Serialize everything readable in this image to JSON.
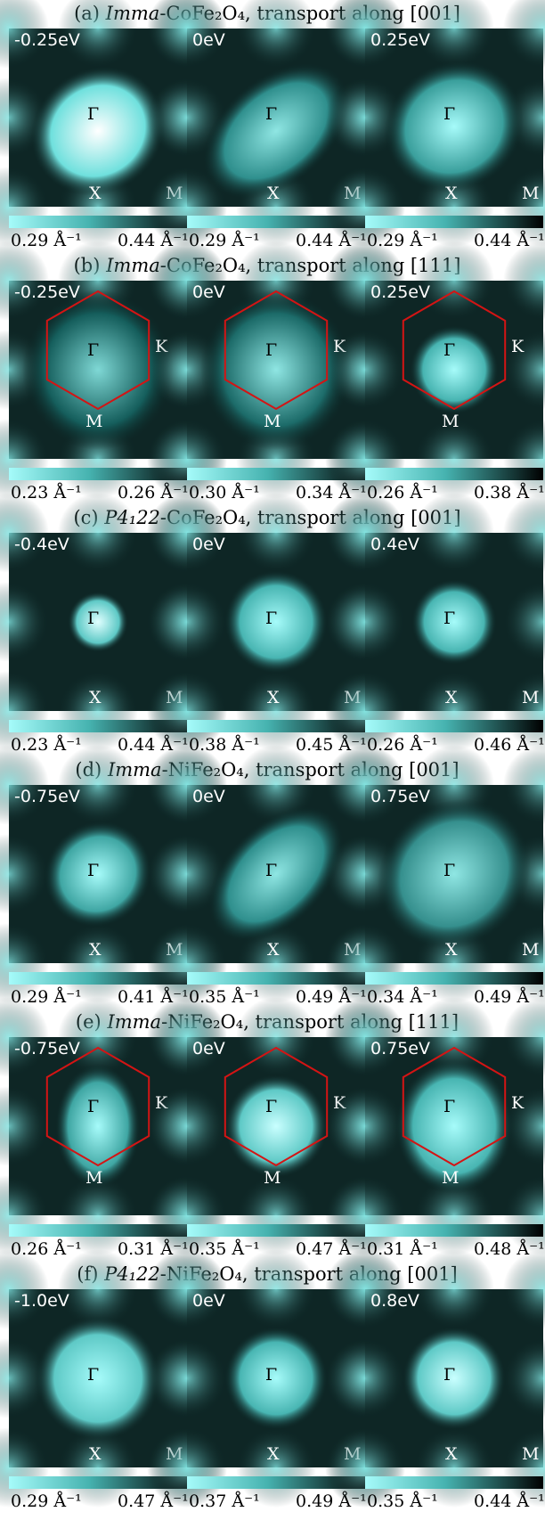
{
  "colors": {
    "scale_low": "#a6fbfa",
    "scale_mid": "#46b3b0",
    "scale_high": "#000000",
    "bz_boundary": "#d41414"
  },
  "rows": [
    {
      "label": "(a)",
      "structure": "Imma",
      "compound": "CoFe₂O₄",
      "direction": "transport along [001]",
      "bz": "square",
      "panels": [
        {
          "energy": "-0.25eV",
          "symbols": [
            "Γ",
            "X",
            "M"
          ],
          "cmin": "0.29 Å⁻¹",
          "cmax": "0.44 Å⁻¹"
        },
        {
          "energy": "0eV",
          "symbols": [
            "Γ",
            "X",
            "M"
          ],
          "cmin": "0.29 Å⁻¹",
          "cmax": "0.44 Å⁻¹"
        },
        {
          "energy": "0.25eV",
          "symbols": [
            "Γ",
            "X",
            "M"
          ],
          "cmin": "0.29 Å⁻¹",
          "cmax": "0.44 Å⁻¹"
        }
      ]
    },
    {
      "label": "(b)",
      "structure": "Imma",
      "compound": "CoFe₂O₄",
      "direction": "transport along [111]",
      "bz": "hexagon",
      "panels": [
        {
          "energy": "-0.25eV",
          "symbols": [
            "Γ",
            "K",
            "M"
          ],
          "cmin": "0.23 Å⁻¹",
          "cmax": "0.26 Å⁻¹"
        },
        {
          "energy": "0eV",
          "symbols": [
            "Γ",
            "K",
            "M"
          ],
          "cmin": "0.30 Å⁻¹",
          "cmax": "0.34 Å⁻¹"
        },
        {
          "energy": "0.25eV",
          "symbols": [
            "Γ",
            "K",
            "M"
          ],
          "cmin": "0.26 Å⁻¹",
          "cmax": "0.38 Å⁻¹"
        }
      ]
    },
    {
      "label": "(c)",
      "structure": "P4₁22",
      "compound": "CoFe₂O₄",
      "direction": "transport along [001]",
      "bz": "square",
      "panels": [
        {
          "energy": "-0.4eV",
          "symbols": [
            "Γ",
            "X",
            "M"
          ],
          "cmin": "0.23 Å⁻¹",
          "cmax": "0.44 Å⁻¹"
        },
        {
          "energy": "0eV",
          "symbols": [
            "Γ",
            "X",
            "M"
          ],
          "cmin": "0.38 Å⁻¹",
          "cmax": "0.45 Å⁻¹"
        },
        {
          "energy": "0.4eV",
          "symbols": [
            "Γ",
            "X",
            "M"
          ],
          "cmin": "0.26 Å⁻¹",
          "cmax": "0.46 Å⁻¹"
        }
      ]
    },
    {
      "label": "(d)",
      "structure": "Imma",
      "compound": "NiFe₂O₄",
      "direction": "transport along [001]",
      "bz": "square",
      "panels": [
        {
          "energy": "-0.75eV",
          "symbols": [
            "Γ",
            "X",
            "M"
          ],
          "cmin": "0.29 Å⁻¹",
          "cmax": "0.41 Å⁻¹"
        },
        {
          "energy": "0eV",
          "symbols": [
            "Γ",
            "X",
            "M"
          ],
          "cmin": "0.35 Å⁻¹",
          "cmax": "0.49 Å⁻¹"
        },
        {
          "energy": "0.75eV",
          "symbols": [
            "Γ",
            "X",
            "M"
          ],
          "cmin": "0.34 Å⁻¹",
          "cmax": "0.49 Å⁻¹"
        }
      ]
    },
    {
      "label": "(e)",
      "structure": "Imma",
      "compound": "NiFe₂O₄",
      "direction": "transport along [111]",
      "bz": "hexagon",
      "panels": [
        {
          "energy": "-0.75eV",
          "symbols": [
            "Γ",
            "K",
            "M"
          ],
          "cmin": "0.26 Å⁻¹",
          "cmax": "0.31 Å⁻¹"
        },
        {
          "energy": "0eV",
          "symbols": [
            "Γ",
            "K",
            "M"
          ],
          "cmin": "0.35 Å⁻¹",
          "cmax": "0.47 Å⁻¹"
        },
        {
          "energy": "0.75eV",
          "symbols": [
            "Γ",
            "K",
            "M"
          ],
          "cmin": "0.31 Å⁻¹",
          "cmax": "0.48 Å⁻¹"
        }
      ]
    },
    {
      "label": "(f)",
      "structure": "P4₁22",
      "compound": "NiFe₂O₄",
      "direction": "transport along [001]",
      "bz": "square",
      "panels": [
        {
          "energy": "-1.0eV",
          "symbols": [
            "Γ",
            "X",
            "M"
          ],
          "cmin": "0.29 Å⁻¹",
          "cmax": "0.47 Å⁻¹"
        },
        {
          "energy": "0eV",
          "symbols": [
            "Γ",
            "X",
            "M"
          ],
          "cmin": "0.37 Å⁻¹",
          "cmax": "0.49 Å⁻¹"
        },
        {
          "energy": "0.8eV",
          "symbols": [
            "Γ",
            "X",
            "M"
          ],
          "cmin": "0.35 Å⁻¹",
          "cmax": "0.44 Å⁻¹"
        }
      ]
    }
  ]
}
